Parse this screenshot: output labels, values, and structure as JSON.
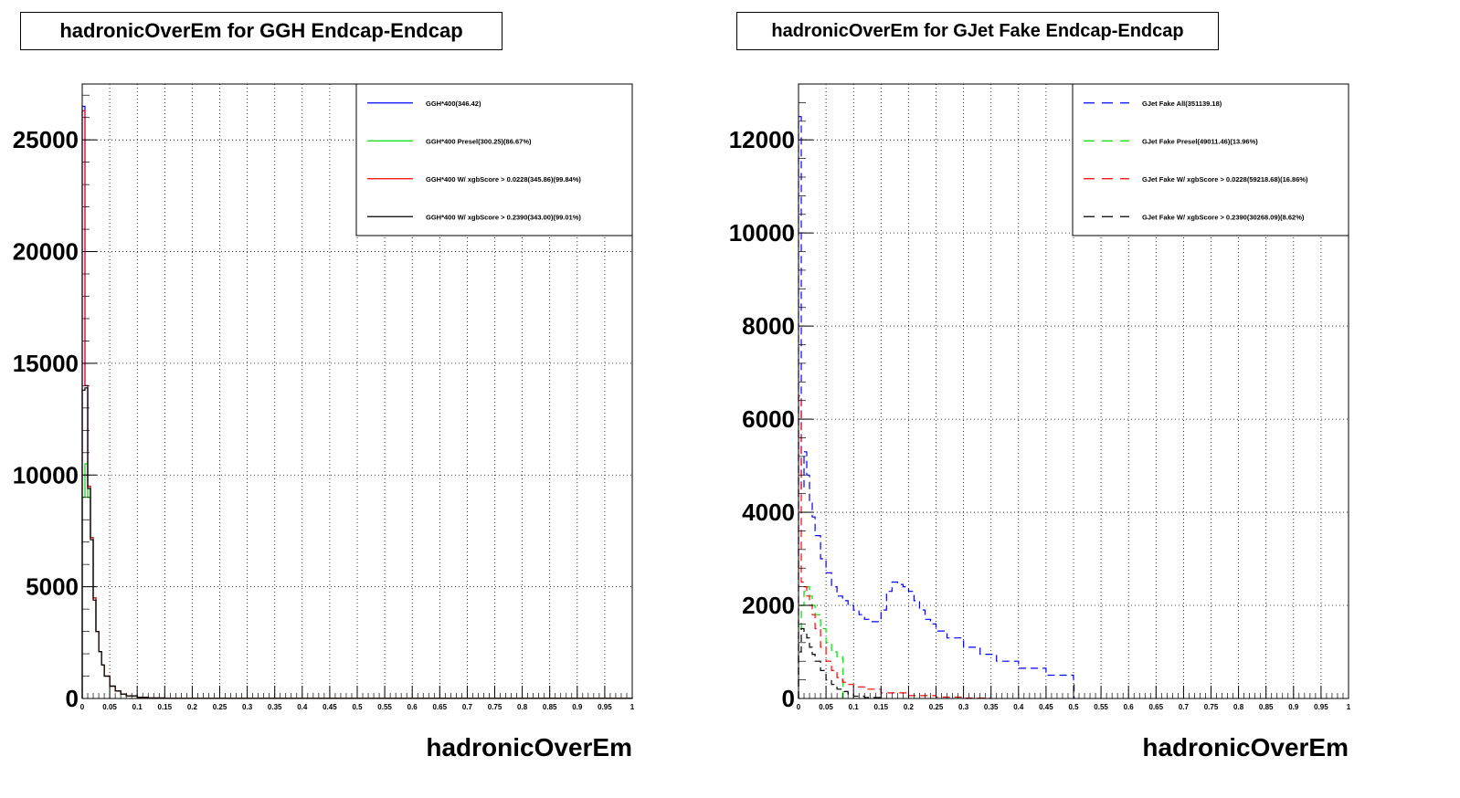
{
  "chart_data": [
    {
      "type": "line",
      "title": "hadronicOverEm for GGH Endcap-Endcap",
      "xlabel": "hadronicOverEm",
      "ylabel": "",
      "xlim": [
        0,
        1
      ],
      "ylim": [
        0,
        27500
      ],
      "x_ticks": [
        {
          "v": 0,
          "label": "0"
        },
        {
          "v": 0.05,
          "label": "0.05"
        },
        {
          "v": 0.1,
          "label": "0.1"
        },
        {
          "v": 0.15,
          "label": "0.15"
        },
        {
          "v": 0.2,
          "label": "0.2"
        },
        {
          "v": 0.25,
          "label": "0.25"
        },
        {
          "v": 0.3,
          "label": "0.3"
        },
        {
          "v": 0.35,
          "label": "0.35"
        },
        {
          "v": 0.4,
          "label": "0.4"
        },
        {
          "v": 0.45,
          "label": "0.45"
        },
        {
          "v": 0.5,
          "label": "0.5"
        },
        {
          "v": 0.55,
          "label": "0.55"
        },
        {
          "v": 0.6,
          "label": "0.6"
        },
        {
          "v": 0.65,
          "label": "0.65"
        },
        {
          "v": 0.7,
          "label": "0.7"
        },
        {
          "v": 0.75,
          "label": "0.75"
        },
        {
          "v": 0.8,
          "label": "0.8"
        },
        {
          "v": 0.85,
          "label": "0.85"
        },
        {
          "v": 0.9,
          "label": "0.9"
        },
        {
          "v": 0.95,
          "label": "0.95"
        },
        {
          "v": 1,
          "label": "1"
        }
      ],
      "y_ticks": [
        {
          "v": 0,
          "label": "0"
        },
        {
          "v": 5000,
          "label": "5000"
        },
        {
          "v": 10000,
          "label": "10000"
        },
        {
          "v": 15000,
          "label": "15000"
        },
        {
          "v": 20000,
          "label": "20000"
        },
        {
          "v": 25000,
          "label": "25000"
        }
      ],
      "grid": true,
      "legend_position": "top-right",
      "series": [
        {
          "name": "GGH*400(346.42)",
          "color": "#0000ff",
          "dash": "",
          "x": [
            0,
            0.005,
            0.01,
            0.015,
            0.02,
            0.025,
            0.03,
            0.035,
            0.04,
            0.05,
            0.06,
            0.07,
            0.08,
            0.1,
            0.12,
            0.15,
            1
          ],
          "y": [
            26500,
            14000,
            9500,
            7200,
            4500,
            3000,
            2100,
            1500,
            1000,
            550,
            330,
            200,
            120,
            50,
            20,
            5,
            0
          ]
        },
        {
          "name": "GGH*400 Presel(300.25)(86.67%)",
          "color": "#00dd00",
          "dash": "",
          "x": [
            0,
            0.005,
            0.01,
            0.015,
            0.02,
            0.025,
            0.03,
            0.035,
            0.04,
            0.05,
            0.06,
            0.07,
            0.08,
            0.1,
            0.12,
            0.15,
            1
          ],
          "y": [
            9000,
            10500,
            9000,
            7200,
            4500,
            3000,
            2100,
            1500,
            1000,
            550,
            330,
            200,
            120,
            50,
            20,
            5,
            0
          ]
        },
        {
          "name": "GGH*400 W/ xgbScore > 0.0228(345.86)(99.84%)",
          "color": "#ff0000",
          "dash": "",
          "x": [
            0,
            0.005,
            0.01,
            0.015,
            0.02,
            0.025,
            0.03,
            0.035,
            0.04,
            0.05,
            0.06,
            0.07,
            0.08,
            0.1,
            0.12,
            0.15,
            1
          ],
          "y": [
            26300,
            14000,
            9500,
            7200,
            4500,
            3000,
            2100,
            1500,
            1000,
            550,
            330,
            200,
            120,
            50,
            20,
            5,
            0
          ]
        },
        {
          "name": "GGH*400 W/ xgbScore > 0.2390(343.00)(99.01%)",
          "color": "#000000",
          "dash": "",
          "x": [
            0,
            0.005,
            0.01,
            0.015,
            0.02,
            0.025,
            0.03,
            0.035,
            0.04,
            0.05,
            0.06,
            0.07,
            0.08,
            0.1,
            0.12,
            0.15,
            1
          ],
          "y": [
            13800,
            13900,
            9400,
            7100,
            4400,
            3000,
            2100,
            1500,
            1000,
            550,
            330,
            200,
            120,
            50,
            20,
            5,
            0
          ]
        }
      ]
    },
    {
      "type": "line",
      "title": "hadronicOverEm for GJet Fake Endcap-Endcap",
      "xlabel": "hadronicOverEm",
      "ylabel": "",
      "xlim": [
        0,
        1
      ],
      "ylim": [
        0,
        13200
      ],
      "x_ticks": [
        {
          "v": 0,
          "label": "0"
        },
        {
          "v": 0.05,
          "label": "0.05"
        },
        {
          "v": 0.1,
          "label": "0.1"
        },
        {
          "v": 0.15,
          "label": "0.15"
        },
        {
          "v": 0.2,
          "label": "0.2"
        },
        {
          "v": 0.25,
          "label": "0.25"
        },
        {
          "v": 0.3,
          "label": "0.3"
        },
        {
          "v": 0.35,
          "label": "0.35"
        },
        {
          "v": 0.4,
          "label": "0.4"
        },
        {
          "v": 0.45,
          "label": "0.45"
        },
        {
          "v": 0.5,
          "label": "0.5"
        },
        {
          "v": 0.55,
          "label": "0.55"
        },
        {
          "v": 0.6,
          "label": "0.6"
        },
        {
          "v": 0.65,
          "label": "0.65"
        },
        {
          "v": 0.7,
          "label": "0.7"
        },
        {
          "v": 0.75,
          "label": "0.75"
        },
        {
          "v": 0.8,
          "label": "0.8"
        },
        {
          "v": 0.85,
          "label": "0.85"
        },
        {
          "v": 0.9,
          "label": "0.9"
        },
        {
          "v": 0.95,
          "label": "0.95"
        },
        {
          "v": 1,
          "label": "1"
        }
      ],
      "y_ticks": [
        {
          "v": 0,
          "label": "0"
        },
        {
          "v": 2000,
          "label": "2000"
        },
        {
          "v": 4000,
          "label": "4000"
        },
        {
          "v": 6000,
          "label": "6000"
        },
        {
          "v": 8000,
          "label": "8000"
        },
        {
          "v": 10000,
          "label": "10000"
        },
        {
          "v": 12000,
          "label": "12000"
        }
      ],
      "grid": true,
      "legend_position": "top-right",
      "series": [
        {
          "name": "GJet Fake All(351139.18)",
          "color": "#0000ff",
          "dash": "8,5",
          "x": [
            0,
            0.005,
            0.01,
            0.015,
            0.02,
            0.025,
            0.03,
            0.04,
            0.05,
            0.06,
            0.07,
            0.08,
            0.09,
            0.1,
            0.11,
            0.12,
            0.13,
            0.14,
            0.15,
            0.16,
            0.17,
            0.18,
            0.19,
            0.2,
            0.21,
            0.22,
            0.23,
            0.24,
            0.25,
            0.27,
            0.3,
            0.33,
            0.36,
            0.4,
            0.45,
            0.5,
            0.501
          ],
          "y": [
            12500,
            4500,
            5300,
            4800,
            4200,
            3900,
            3500,
            3000,
            2700,
            2400,
            2200,
            2100,
            2000,
            1900,
            1800,
            1700,
            1650,
            1650,
            1900,
            2300,
            2500,
            2450,
            2400,
            2300,
            2100,
            1900,
            1700,
            1600,
            1450,
            1300,
            1100,
            950,
            800,
            650,
            500,
            400,
            0
          ]
        },
        {
          "name": "GJet Fake Presel(49011.46)(13.96%)",
          "color": "#00dd00",
          "dash": "8,5",
          "x": [
            0,
            0.005,
            0.01,
            0.015,
            0.02,
            0.025,
            0.03,
            0.04,
            0.05,
            0.06,
            0.07,
            0.08,
            0.081
          ],
          "y": [
            1500,
            2000,
            2300,
            2400,
            2200,
            2000,
            1800,
            1500,
            1200,
            1000,
            900,
            850,
            0
          ]
        },
        {
          "name": "GJet Fake W/ xgbScore > 0.0228(59218.68)(16.86%)",
          "color": "#ff0000",
          "dash": "8,5",
          "x": [
            0,
            0.005,
            0.01,
            0.015,
            0.02,
            0.025,
            0.03,
            0.04,
            0.05,
            0.06,
            0.07,
            0.08,
            0.09,
            0.1,
            0.12,
            0.15,
            0.2,
            0.25,
            0.3,
            0.35
          ],
          "y": [
            6500,
            2500,
            2400,
            2200,
            2000,
            1800,
            1500,
            1100,
            800,
            600,
            450,
            350,
            300,
            250,
            200,
            120,
            60,
            30,
            10,
            0
          ]
        },
        {
          "name": "GJet Fake W/ xgbScore > 0.2390(30268.09)(8.62%)",
          "color": "#000000",
          "dash": "8,5",
          "x": [
            0,
            0.005,
            0.01,
            0.015,
            0.02,
            0.025,
            0.03,
            0.04,
            0.05,
            0.06,
            0.07,
            0.08,
            0.09,
            0.1,
            0.12,
            0.15
          ],
          "y": [
            1000,
            1500,
            1400,
            1300,
            1100,
            950,
            800,
            600,
            400,
            300,
            200,
            150,
            100,
            50,
            20,
            0
          ]
        }
      ]
    }
  ]
}
